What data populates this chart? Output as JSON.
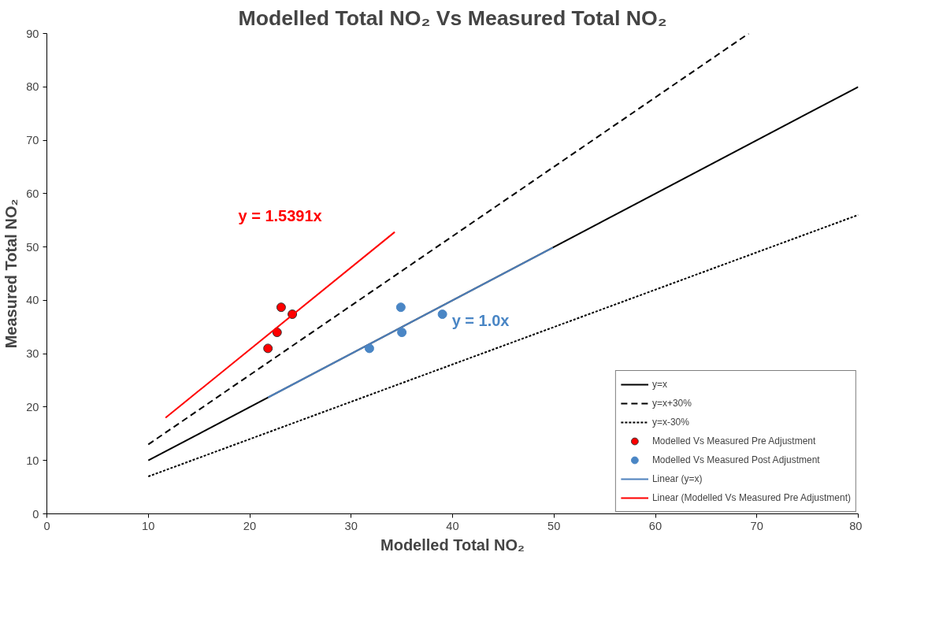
{
  "chart_data": {
    "type": "scatter",
    "title": "Modelled Total NO₂ Vs Measured Total NO₂",
    "xlabel": "Modelled Total NO₂",
    "ylabel": "Measured Total NO₂",
    "xlim": [
      0,
      80
    ],
    "ylim": [
      0,
      90
    ],
    "xticks": [
      0,
      10,
      20,
      30,
      40,
      50,
      60,
      70,
      80
    ],
    "yticks": [
      0,
      10,
      20,
      30,
      40,
      50,
      60,
      70,
      80,
      90
    ],
    "grid": false,
    "legend": "bottom right",
    "series": [
      {
        "name": "y=x",
        "type": "line",
        "marker": "none",
        "line_style": "solid",
        "color": "#000000",
        "x": [
          10,
          80
        ],
        "values": [
          10,
          80
        ]
      },
      {
        "name": "y=x+30%",
        "type": "line",
        "marker": "none",
        "line_style": "dashed",
        "color": "#000000",
        "x": [
          10,
          69.2
        ],
        "values": [
          13,
          90
        ]
      },
      {
        "name": "y=x-30%",
        "type": "line",
        "marker": "none",
        "line_style": "dotted",
        "color": "#000000",
        "x": [
          10,
          80
        ],
        "values": [
          7,
          56
        ]
      },
      {
        "name": "Modelled Vs Measured Pre Adjustment",
        "marker": "circle",
        "color": "#ff0000",
        "x": [
          21.8,
          22.7,
          23.1,
          24.2
        ],
        "values": [
          31.0,
          34.0,
          38.7,
          37.4
        ]
      },
      {
        "name": "Modelled Vs Measured Post Adjustment",
        "marker": "circle",
        "color": "#4a86c5",
        "x": [
          31.8,
          35.0,
          34.9,
          39.0
        ],
        "values": [
          31.0,
          34.0,
          38.7,
          37.4
        ]
      },
      {
        "name": "Linear (y=x)",
        "type": "line",
        "marker": "none",
        "line_style": "solid",
        "color": "#4f81bd",
        "x": [
          21.8,
          49.9
        ],
        "values": [
          21.8,
          49.9
        ]
      },
      {
        "name": "Linear (Modelled Vs Measured Pre Adjustment)",
        "type": "line",
        "marker": "none",
        "line_style": "solid",
        "color": "#ff0000",
        "x": [
          11.7,
          34.3
        ],
        "values": [
          18.0,
          52.8
        ]
      }
    ],
    "annotations": [
      "y = 1.5391x",
      "y = 1.0x"
    ]
  }
}
